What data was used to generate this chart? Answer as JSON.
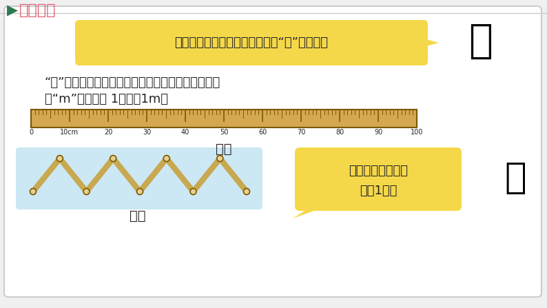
{
  "bg_color": "#f0f0f0",
  "main_bg": "#ffffff",
  "title_arrow_color": "#2d7a4f",
  "title_text_color": "#e05a6e",
  "title_arrow": "▶",
  "title_label": "新知探究",
  "bubble_text": "量比较长的物体或距离，通常用“米”作单位。",
  "bubble_bg": "#f5d84a",
  "body_text1": "“米”也是国際上统一使用的一个长度单位，可以用字",
  "body_text2": "母“m”来表示。 1米记作1m。",
  "ruler_color": "#d4a850",
  "ruler_dark": "#7a5800",
  "ruler_label": "米尺",
  "ruler_ticks": [
    "0",
    "10cm",
    "20",
    "30",
    "40",
    "50",
    "60",
    "70",
    "80",
    "90",
    "100"
  ],
  "fold_label": "折尺",
  "fold_bg": "#cce8f4",
  "fold_color": "#c8a850",
  "fold_dark": "#7a5800",
  "speech_text1": "米尺和折尺的长度",
  "speech_text2": "都是1米。",
  "speech_bg": "#f5d84a",
  "text_color": "#222222"
}
